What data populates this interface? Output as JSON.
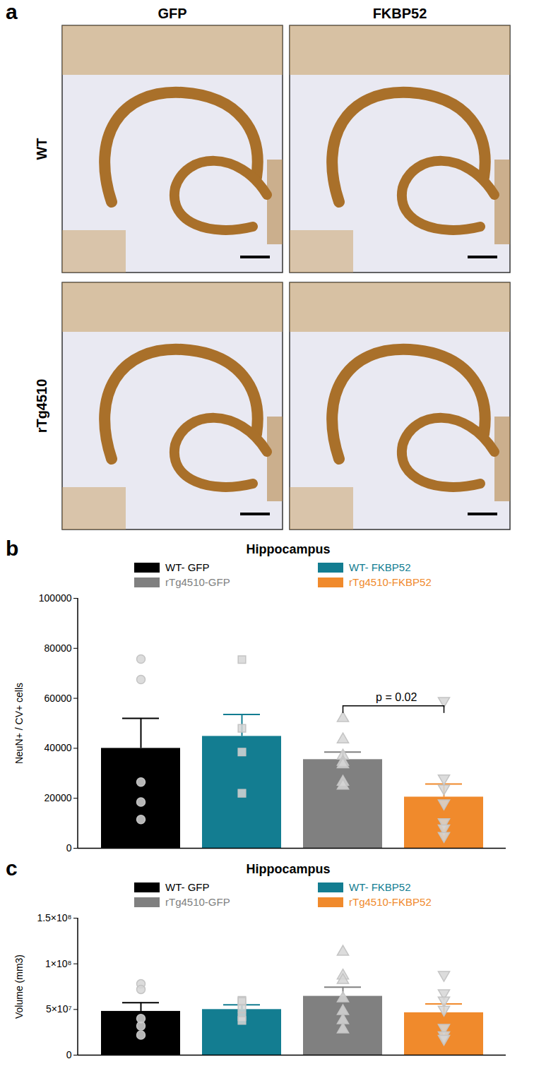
{
  "panel_a": {
    "label": "a",
    "columns": [
      "GFP",
      "FKBP52"
    ],
    "rows": [
      "WT",
      "rTg4510"
    ]
  },
  "chart_data": [
    {
      "type": "bar",
      "panel_label": "b",
      "title": "Hippocampus",
      "ylabel": "NeuN+ / CV+ cells",
      "ylim": [
        0,
        100000
      ],
      "yticks": [
        0,
        20000,
        40000,
        60000,
        80000,
        100000
      ],
      "legend": "top",
      "tick_labels": "y",
      "series": [
        {
          "name": "WT- GFP",
          "color": "#000000",
          "marker": "circle",
          "values": [
            40000
          ],
          "error": [
            12000
          ],
          "points": [
            75700,
            67500,
            26500,
            18500,
            11500
          ]
        },
        {
          "name": "WT- FKBP52",
          "color": "#137d91",
          "marker": "square",
          "values": [
            44800
          ],
          "error": [
            8700
          ],
          "points": [
            75500,
            48000,
            38500,
            22000
          ]
        },
        {
          "name": "rTg4510-GFP",
          "color": "#808080",
          "marker": "triangle",
          "values": [
            35500
          ],
          "error": [
            3000
          ],
          "points": [
            52000,
            43500,
            37000,
            34500,
            33500,
            26500,
            25000
          ]
        },
        {
          "name": "rTg4510-FKBP52",
          "color": "#f08a2c",
          "marker": "triangle-down",
          "values": [
            20500
          ],
          "error": [
            5200
          ],
          "points": [
            59000,
            28000,
            24000,
            18000,
            10500,
            8000,
            5000
          ]
        }
      ],
      "annotations": [
        {
          "text": "p = 0.02",
          "from": "rTg4510-GFP",
          "to": "rTg4510-FKBP52",
          "y": 57000
        }
      ]
    },
    {
      "type": "bar",
      "panel_label": "c",
      "title": "Hippocampus",
      "ylabel": "Volume (mm3)",
      "ylim": [
        0,
        150000000
      ],
      "yticks": [
        0,
        {
          "value": 50000000,
          "label": "5×10⁷"
        },
        {
          "value": 100000000,
          "label": "1×10⁸"
        },
        {
          "value": 150000000,
          "label": "1.5×10⁸"
        }
      ],
      "legend": "top",
      "tick_labels": "y",
      "series": [
        {
          "name": "WT- GFP",
          "color": "#000000",
          "marker": "circle",
          "values": [
            48000000
          ],
          "error": [
            9500000
          ],
          "points": [
            78000000,
            72000000,
            40000000,
            32000000,
            22000000
          ]
        },
        {
          "name": "WT- FKBP52",
          "color": "#137d91",
          "marker": "square",
          "values": [
            50000000
          ],
          "error": [
            5000000
          ],
          "points": [
            60000000,
            59000000,
            51000000,
            42000000,
            38000000
          ]
        },
        {
          "name": "rTg4510-GFP",
          "color": "#808080",
          "marker": "triangle",
          "values": [
            64500000
          ],
          "error": [
            10000000
          ],
          "points": [
            113000000,
            87000000,
            82000000,
            62000000,
            48000000,
            38000000,
            28000000
          ]
        },
        {
          "name": "rTg4510-FKBP52",
          "color": "#f08a2c",
          "marker": "triangle-down",
          "values": [
            46500000
          ],
          "error": [
            9500000
          ],
          "points": [
            88000000,
            68000000,
            60000000,
            50000000,
            30000000,
            22000000,
            18000000
          ]
        }
      ]
    }
  ]
}
